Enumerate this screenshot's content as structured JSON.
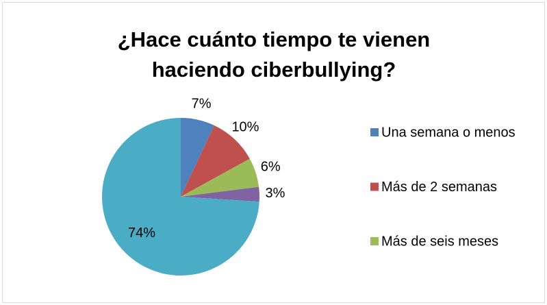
{
  "chart_data": {
    "type": "pie",
    "title": "¿Hace cuánto tiempo te vienen haciendo ciberbullying?",
    "categories": [
      "Una semana o menos",
      "Más de 2 semanas",
      "Más de seis meses",
      null,
      null
    ],
    "values": [
      7,
      10,
      6,
      3,
      74
    ],
    "value_labels": [
      "7%",
      "10%",
      "6%",
      "3%",
      "74%"
    ],
    "colors": [
      "#4f81bd",
      "#c0504d",
      "#9bbb59",
      "#8064a2",
      "#4bacc6"
    ],
    "legend": "right"
  }
}
